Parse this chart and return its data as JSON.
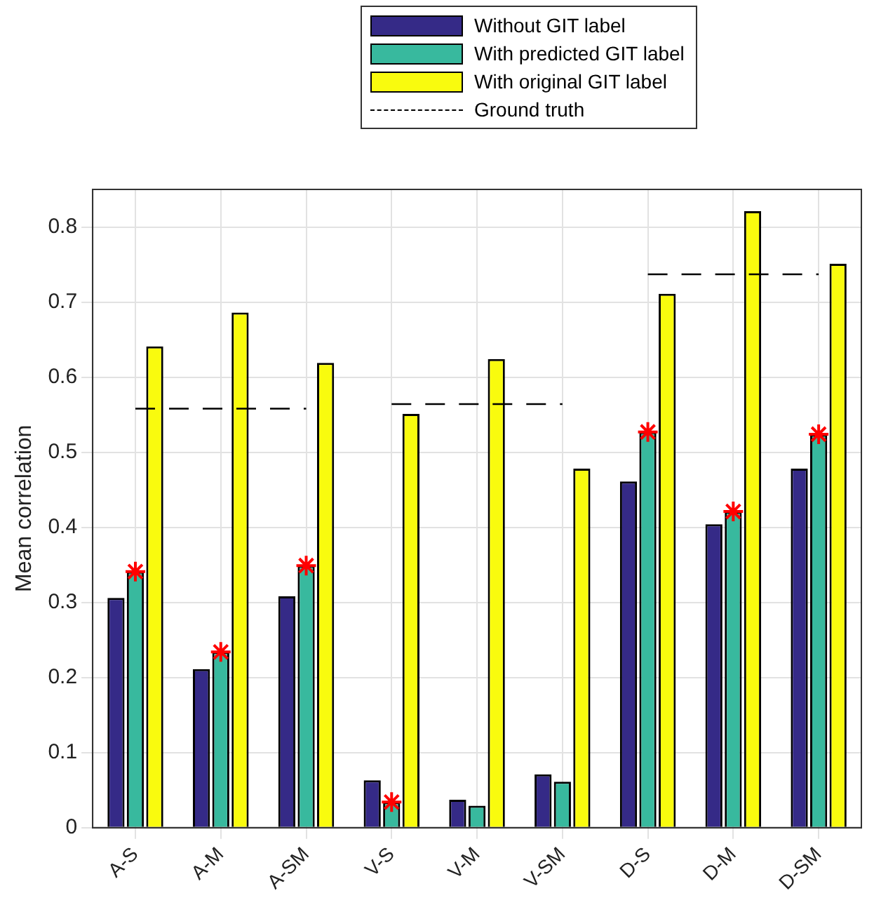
{
  "chart_data": {
    "type": "bar",
    "ylabel": "Mean correlation",
    "categories": [
      "A-S",
      "A-M",
      "A-SM",
      "V-S",
      "V-M",
      "V-SM",
      "D-S",
      "D-M",
      "D-SM"
    ],
    "series": [
      {
        "name": "Without GIT label",
        "color": "#352a87",
        "values": [
          0.306,
          0.211,
          0.308,
          0.063,
          0.037,
          0.071,
          0.461,
          0.404,
          0.478
        ]
      },
      {
        "name": "With predicted GIT label",
        "color": "#38b99e",
        "values": [
          0.341,
          0.234,
          0.349,
          0.034,
          0.029,
          0.061,
          0.527,
          0.421,
          0.524
        ]
      },
      {
        "name": "With original GIT label",
        "color": "#f9fb0e",
        "values": [
          0.641,
          0.686,
          0.619,
          0.551,
          0.624,
          0.478,
          0.711,
          0.821,
          0.751
        ]
      },
      {
        "name": "Ground truth",
        "type": "line",
        "color": "#000000",
        "line_style": "dashed",
        "marker": "none",
        "values": [
          0.558,
          0.558,
          0.558,
          0.564,
          0.564,
          0.564,
          0.737,
          0.737,
          0.737
        ]
      },
      {
        "type": "scatter",
        "color": "#ff0000",
        "marker": "cross",
        "x": [
          "A-S",
          "A-M",
          "A-SM",
          "V-S",
          "D-S",
          "D-M",
          "D-SM"
        ],
        "values": [
          0.341,
          0.234,
          0.349,
          0.034,
          0.527,
          0.421,
          0.524
        ]
      }
    ],
    "ylim": [
      0,
      0.85
    ],
    "yticks": [
      0,
      0.1,
      0.2,
      0.3,
      0.4,
      0.5,
      0.6,
      0.7,
      0.8
    ],
    "grid": true,
    "legend": "top"
  }
}
